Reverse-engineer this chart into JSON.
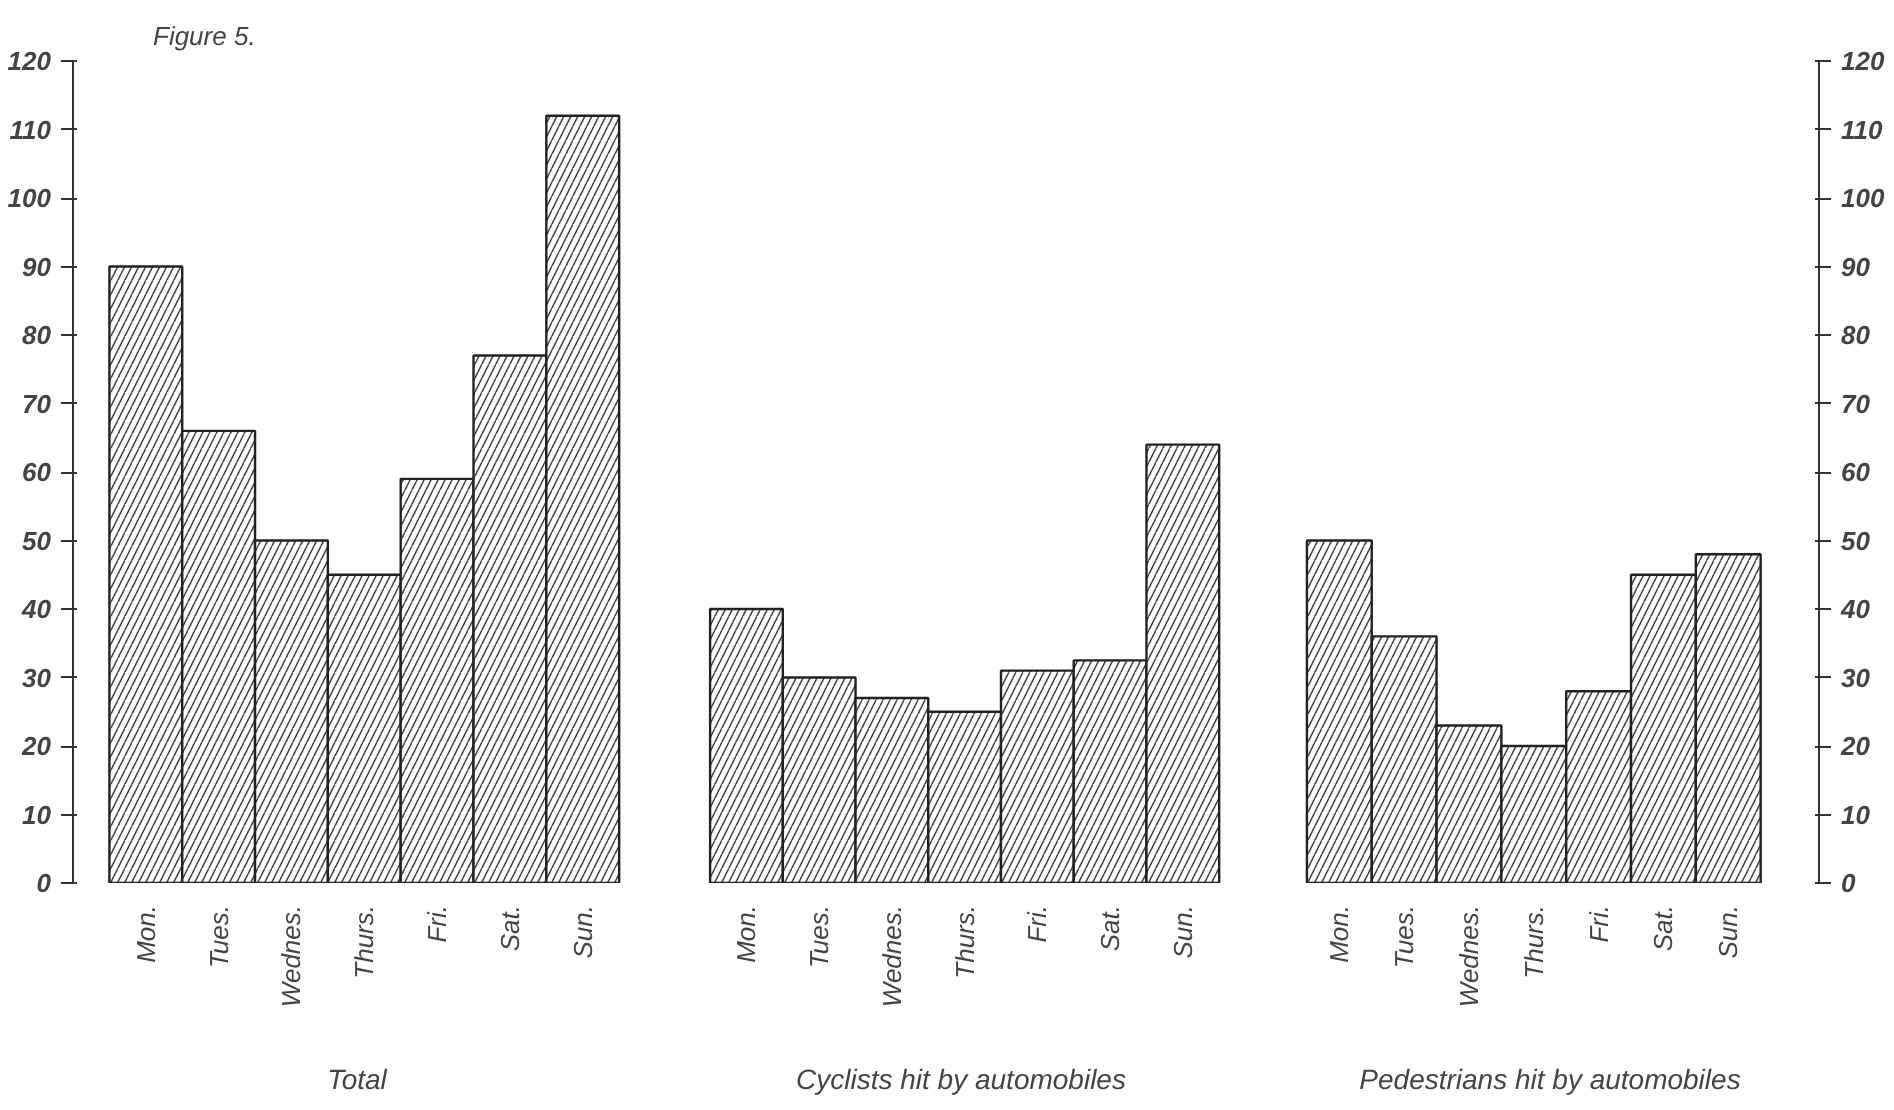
{
  "chart_data": [
    {
      "type": "bar",
      "title": "Figure 5.",
      "xlabel": "Total",
      "categories": [
        "Mon.",
        "Tues.",
        "Wednes.",
        "Thurs.",
        "Fri.",
        "Sat.",
        "Sun."
      ],
      "series": [
        {
          "color": "#ffffff",
          "values": [
            90,
            66,
            50,
            45,
            59,
            77,
            112
          ]
        }
      ],
      "ylim": [
        0,
        120
      ],
      "yticks": [
        0,
        10,
        20,
        30,
        40,
        50,
        60,
        70,
        80,
        90,
        100,
        110,
        120
      ],
      "grid": false
    },
    {
      "type": "bar",
      "xlabel": "Cyclists hit by automobiles",
      "categories": [
        "Mon.",
        "Tues.",
        "Wednes.",
        "Thurs.",
        "Fri.",
        "Sat.",
        "Sun."
      ],
      "series": [
        {
          "color": "#ffffff",
          "values": [
            40,
            30,
            27,
            25,
            31,
            32.5,
            64
          ]
        }
      ],
      "ylim": [
        0,
        120
      ],
      "tick_labels": "x",
      "grid": false
    },
    {
      "type": "bar",
      "xlabel": "Pedestrians hit by automobiles",
      "categories": [
        "Mon.",
        "Tues.",
        "Wednes.",
        "Thurs.",
        "Fri.",
        "Sat.",
        "Sun."
      ],
      "series": [
        {
          "color": "#ffffff",
          "values": [
            50,
            36,
            23,
            20,
            28,
            45,
            48
          ],
          "axis": "y2"
        }
      ],
      "y2lim": [
        0,
        120
      ],
      "y2ticks": [
        0,
        10,
        20,
        30,
        40,
        50,
        60,
        70,
        80,
        90,
        100,
        110,
        120
      ],
      "grid": false
    }
  ]
}
